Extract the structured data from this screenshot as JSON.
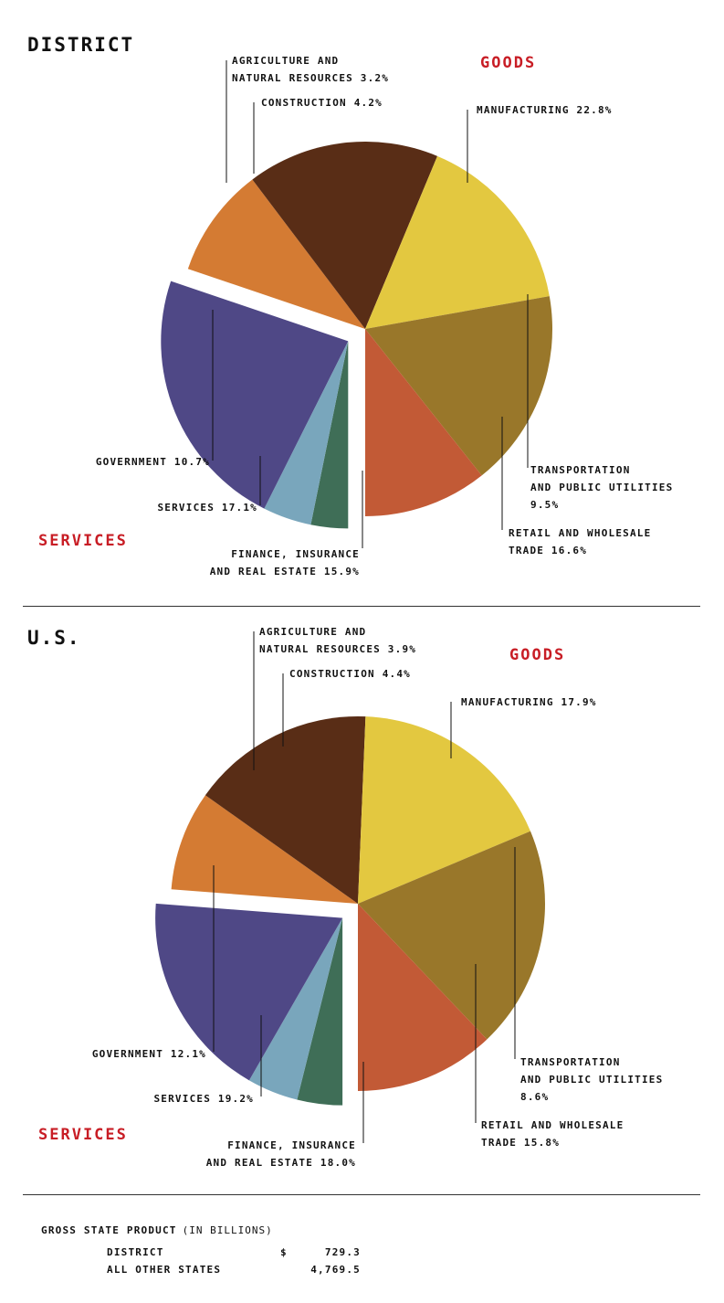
{
  "chart_data": [
    {
      "type": "pie",
      "region": "DISTRICT",
      "slices": [
        {
          "label": [
            "AGRICULTURE AND",
            "NATURAL RESOURCES 3.2%"
          ],
          "value": 3.2,
          "group": "goods",
          "color": "#3f6e57"
        },
        {
          "label": [
            "CONSTRUCTION 4.2%"
          ],
          "value": 4.2,
          "group": "goods",
          "color": "#79a6bc"
        },
        {
          "label": [
            "MANUFACTURING 22.8%"
          ],
          "value": 22.8,
          "group": "goods",
          "color": "#4f4886"
        },
        {
          "label": [
            "TRANSPORTATION",
            "AND PUBLIC UTILITIES",
            "9.5%"
          ],
          "value": 9.5,
          "group": "services",
          "color": "#d47b33"
        },
        {
          "label": [
            "RETAIL AND WHOLESALE",
            "TRADE 16.6%"
          ],
          "value": 16.6,
          "group": "services",
          "color": "#592d16"
        },
        {
          "label": [
            "FINANCE, INSURANCE",
            "AND REAL ESTATE 15.9%"
          ],
          "value": 15.9,
          "group": "services",
          "color": "#e3c840"
        },
        {
          "label": [
            "SERVICES 17.1%"
          ],
          "value": 17.1,
          "group": "services",
          "color": "#99772a"
        },
        {
          "label": [
            "GOVERNMENT 10.7%"
          ],
          "value": 10.7,
          "group": "services",
          "color": "#c25a36"
        }
      ],
      "group_labels": {
        "goods": "GOODS",
        "services": "SERVICES"
      }
    },
    {
      "type": "pie",
      "region": "U.S.",
      "slices": [
        {
          "label": [
            "AGRICULTURE AND",
            "NATURAL RESOURCES 3.9%"
          ],
          "value": 3.9,
          "group": "goods",
          "color": "#3f6e57"
        },
        {
          "label": [
            "CONSTRUCTION 4.4%"
          ],
          "value": 4.4,
          "group": "goods",
          "color": "#79a6bc"
        },
        {
          "label": [
            "MANUFACTURING 17.9%"
          ],
          "value": 17.9,
          "group": "goods",
          "color": "#4f4886"
        },
        {
          "label": [
            "TRANSPORTATION",
            "AND PUBLIC UTILITIES",
            "8.6%"
          ],
          "value": 8.6,
          "group": "services",
          "color": "#d47b33"
        },
        {
          "label": [
            "RETAIL AND WHOLESALE",
            "TRADE 15.8%"
          ],
          "value": 15.8,
          "group": "services",
          "color": "#592d16"
        },
        {
          "label": [
            "FINANCE, INSURANCE",
            "AND REAL ESTATE 18.0%"
          ],
          "value": 18.0,
          "group": "services",
          "color": "#e3c840"
        },
        {
          "label": [
            "SERVICES 19.2%"
          ],
          "value": 19.2,
          "group": "services",
          "color": "#99772a"
        },
        {
          "label": [
            "GOVERNMENT 12.1%"
          ],
          "value": 12.1,
          "group": "services",
          "color": "#c25a36"
        }
      ],
      "group_labels": {
        "goods": "GOODS",
        "services": "SERVICES"
      }
    }
  ],
  "gross_state_product": {
    "title": "GROSS STATE PRODUCT",
    "subtitle": "(IN BILLIONS)",
    "rows": [
      {
        "name": "DISTRICT",
        "currency": "$",
        "value": "729.3"
      },
      {
        "name": "ALL OTHER STATES",
        "currency": "",
        "value": "4,769.5"
      }
    ]
  }
}
